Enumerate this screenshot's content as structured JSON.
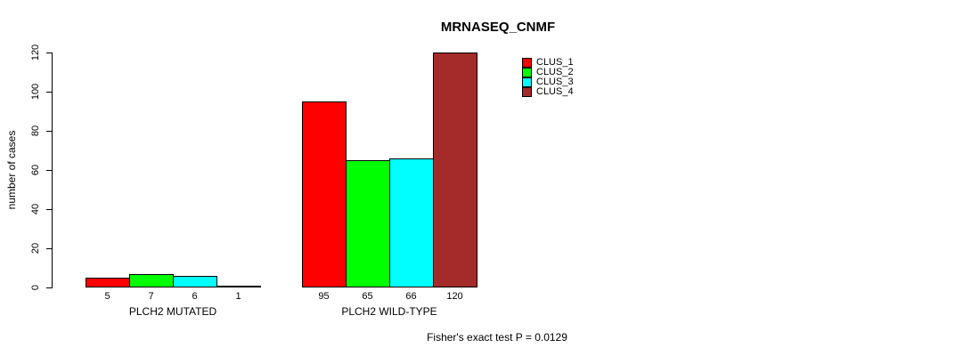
{
  "chart_data": {
    "type": "bar",
    "title": "MRNASEQ_CNMF",
    "ylabel": "number of cases",
    "xlabel": "",
    "categories": [
      "PLCH2 MUTATED",
      "PLCH2 WILD-TYPE"
    ],
    "series": [
      {
        "name": "CLUS_1",
        "color": "#ff0000",
        "values": [
          5,
          95
        ]
      },
      {
        "name": "CLUS_2",
        "color": "#00ff00",
        "values": [
          7,
          65
        ]
      },
      {
        "name": "CLUS_3",
        "color": "#00ffff",
        "values": [
          6,
          66
        ]
      },
      {
        "name": "CLUS_4",
        "color": "#a52a2a",
        "values": [
          1,
          120
        ]
      }
    ],
    "ylim": [
      0,
      120
    ],
    "yticks": [
      0,
      20,
      40,
      60,
      80,
      100,
      120
    ],
    "show_bar_value_labels": true,
    "grid": false,
    "legend_position": "top-right",
    "annotation": "Fisher's exact test P = 0.0129"
  }
}
